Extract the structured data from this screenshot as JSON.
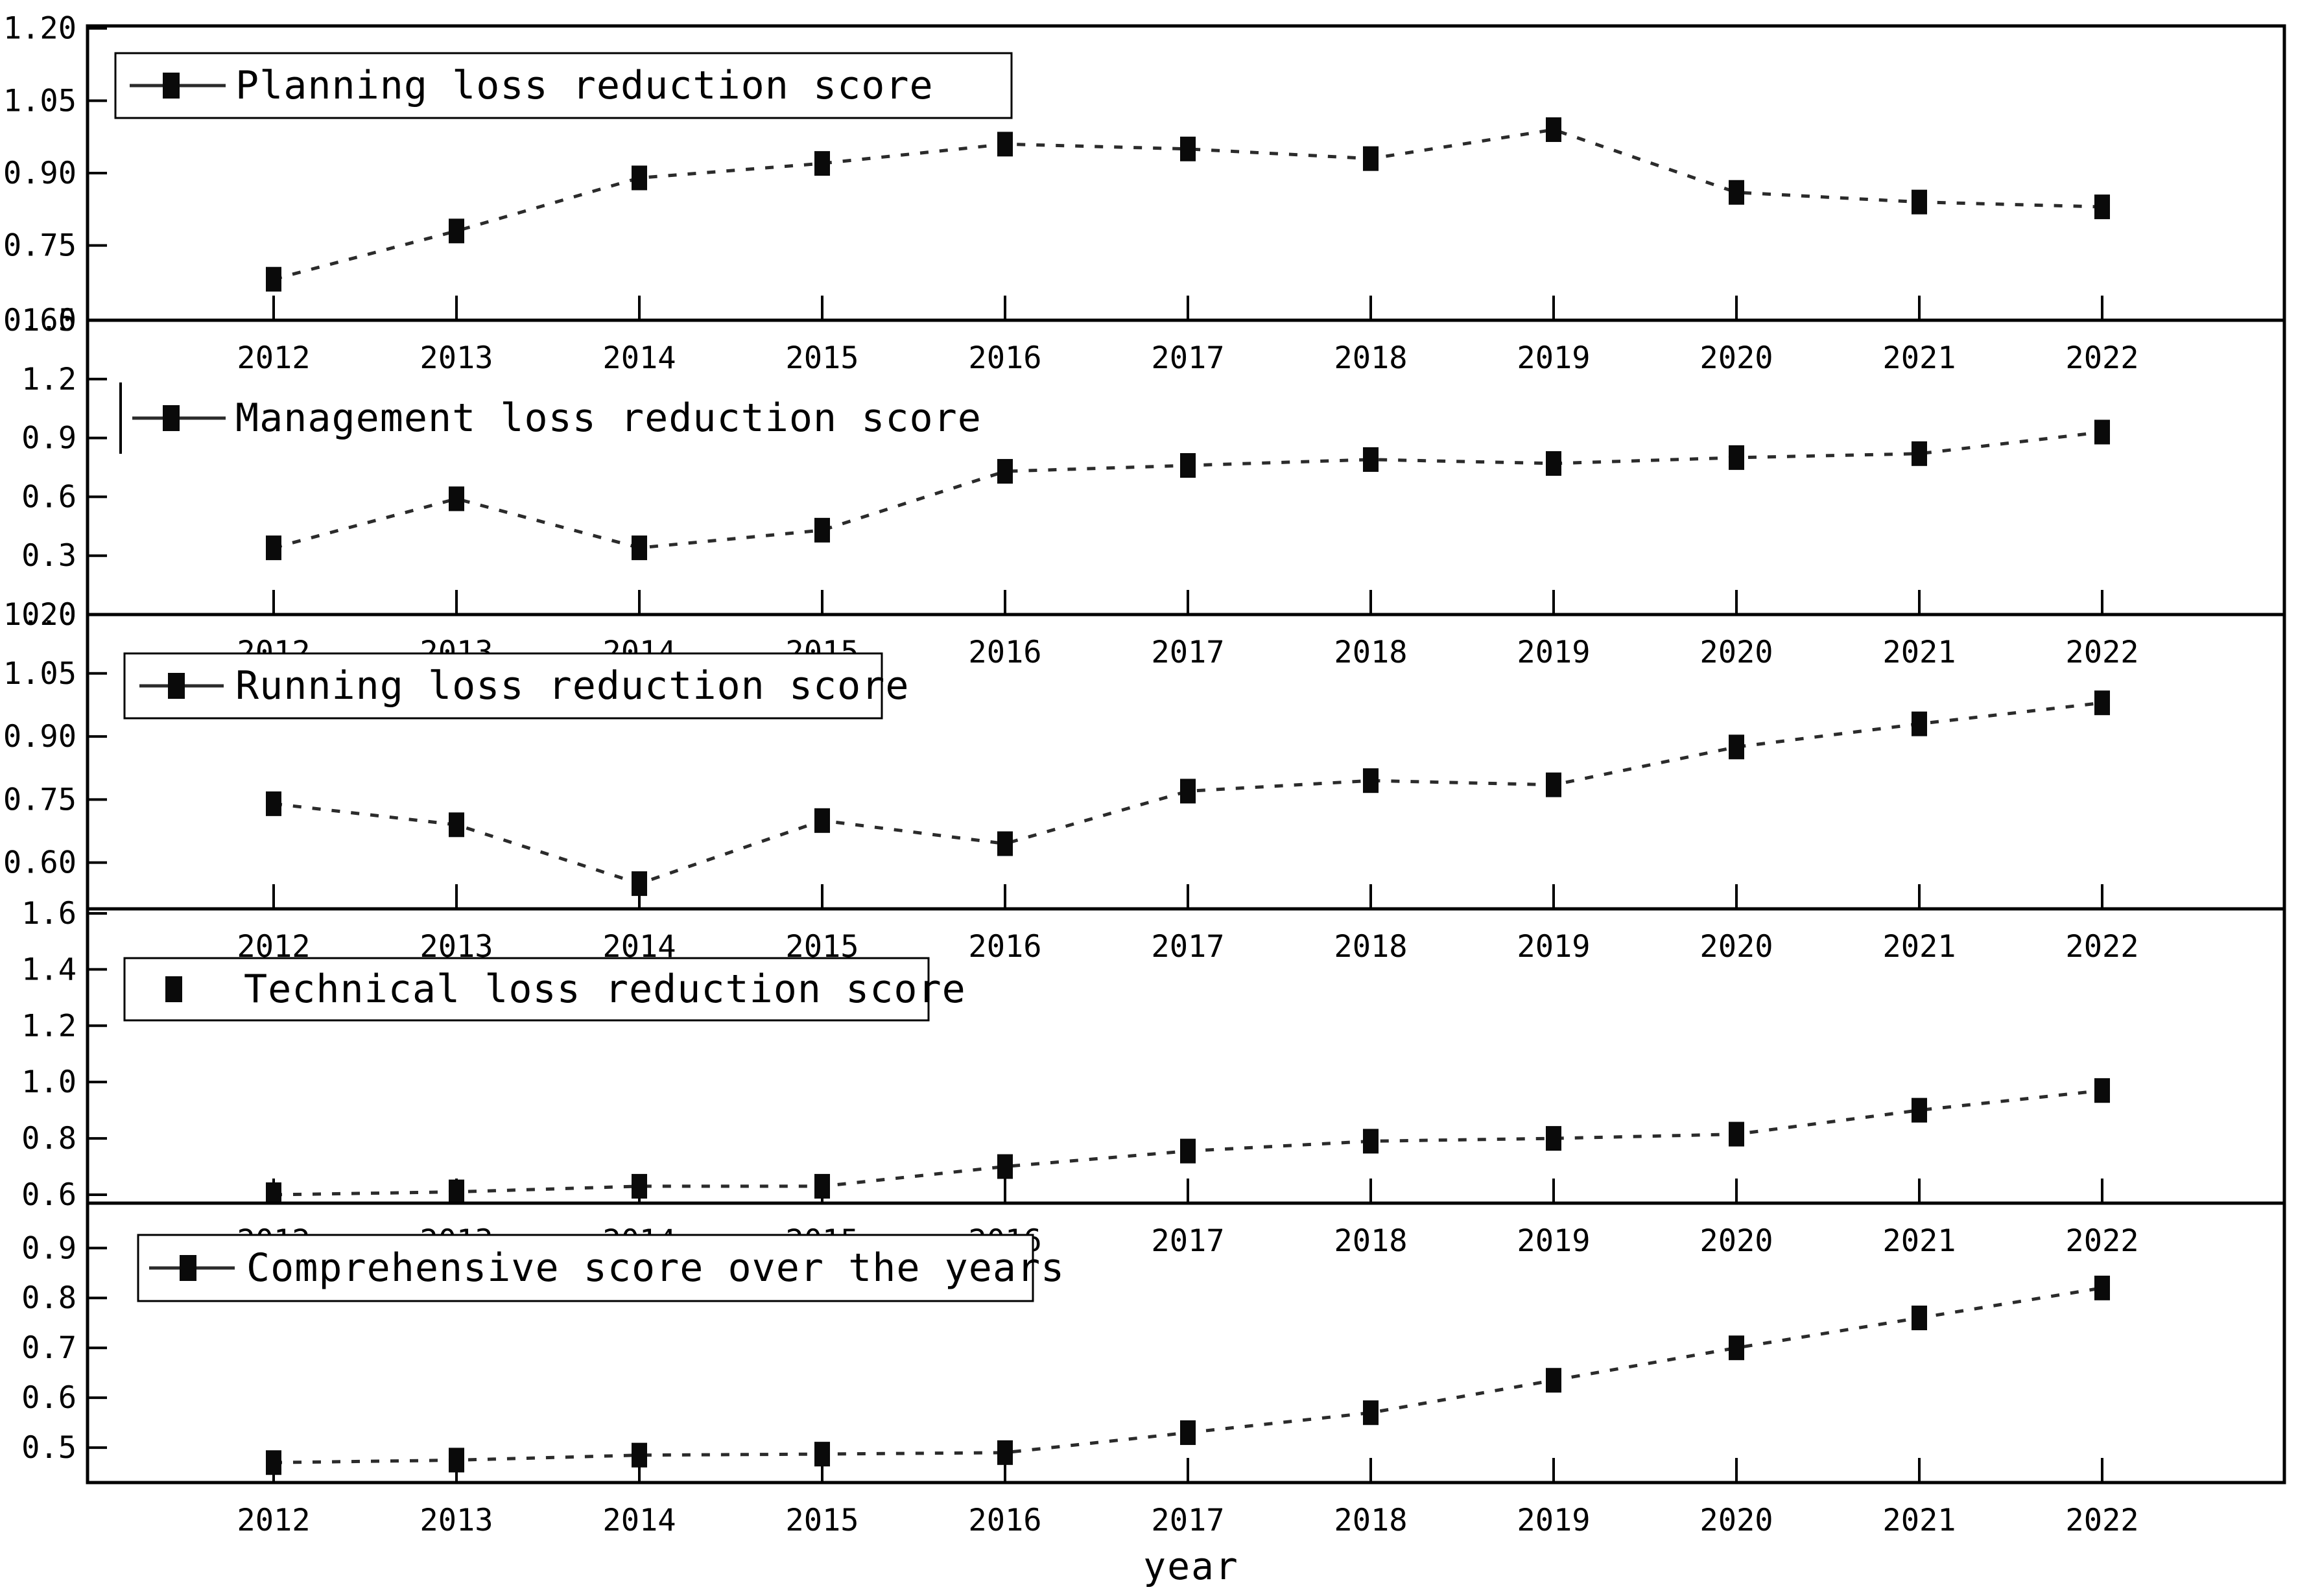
{
  "figure": {
    "background": "#ffffff",
    "axis_color": "#000000",
    "series_color": "#0a0a0a",
    "line_color": "#2b2b2b"
  },
  "chart_data": {
    "type": "line",
    "xlabel": "year",
    "x": [
      2012,
      2013,
      2014,
      2015,
      2016,
      2017,
      2018,
      2019,
      2020,
      2021,
      2022
    ],
    "x_tick_labels": [
      "2012",
      "2013",
      "2014",
      "2015",
      "2016",
      "2017",
      "2018",
      "2019",
      "2020",
      "2021",
      "2022"
    ],
    "legend_position": "upper left",
    "grid": false,
    "marker": "black-square",
    "line_style": "dashed",
    "panels": [
      {
        "name": "planning",
        "legend": {
          "label": "Planning loss reduction score",
          "sample": "line-square",
          "boxed": true
        },
        "y_axis": {
          "max": 1.205,
          "min": 0.595,
          "tick_values": [
            1.2,
            1.05,
            0.9,
            0.75
          ],
          "tick_labels": [
            "1.20",
            "1.05",
            "0.90",
            "0.75"
          ]
        },
        "values": [
          0.68,
          0.78,
          0.89,
          0.92,
          0.96,
          0.95,
          0.93,
          0.99,
          0.86,
          0.84,
          0.83
        ]
      },
      {
        "name": "management",
        "legend": {
          "label": "Management loss reduction score",
          "sample": "line-square",
          "boxed": false
        },
        "y_axis": {
          "max": 1.5,
          "min": 0.0,
          "tick_values": [
            1.2,
            0.9,
            0.6,
            0.3
          ],
          "tick_labels": [
            "1.2",
            "0.9",
            "0.6",
            "0.3"
          ]
        },
        "values": [
          0.34,
          0.59,
          0.34,
          0.43,
          0.73,
          0.76,
          0.79,
          0.77,
          0.8,
          0.82,
          0.93
        ]
      },
      {
        "name": "running",
        "legend": {
          "label": "Running loss reduction score",
          "sample": "line-square",
          "boxed": true
        },
        "y_axis": {
          "max": 1.19,
          "min": 0.49,
          "tick_values": [
            1.05,
            0.9,
            0.75,
            0.6
          ],
          "tick_labels": [
            "1.05",
            "0.90",
            "0.75",
            "0.60"
          ]
        },
        "values": [
          0.74,
          0.69,
          0.55,
          0.7,
          0.645,
          0.77,
          0.795,
          0.785,
          0.875,
          0.93,
          0.98
        ]
      },
      {
        "name": "technical",
        "legend": {
          "label": "Technical loss reduction score",
          "sample": "square",
          "boxed": true
        },
        "y_axis": {
          "max": 1.615,
          "min": 0.57,
          "tick_values": [
            1.4,
            1.2,
            1.0,
            0.8
          ],
          "tick_labels": [
            "1.4",
            "1.2",
            "1.0",
            "0.8"
          ]
        },
        "values": [
          0.6,
          0.61,
          0.63,
          0.63,
          0.7,
          0.755,
          0.79,
          0.8,
          0.815,
          0.9,
          0.97
        ]
      },
      {
        "name": "comprehensive",
        "legend": {
          "label": "Comprehensive score over the years",
          "sample": "line-square",
          "boxed": true
        },
        "y_axis": {
          "max": 0.99,
          "min": 0.43,
          "tick_values": [
            0.9,
            0.8,
            0.7,
            0.6,
            0.5
          ],
          "tick_labels": [
            "0.9",
            "0.8",
            "0.7",
            "0.6",
            "0.5"
          ]
        },
        "values": [
          0.47,
          0.475,
          0.485,
          0.487,
          0.49,
          0.53,
          0.57,
          0.635,
          0.7,
          0.76,
          0.82
        ]
      }
    ],
    "boundary_tick_labels": [
      {
        "between": "planning/management",
        "texts": [
          "0.60",
          "1.5"
        ]
      },
      {
        "between": "management/running",
        "texts": [
          "1.20",
          "0.0"
        ]
      },
      {
        "between": "running/technical",
        "texts": [
          "1.6"
        ]
      },
      {
        "between": "technical/comprehensive",
        "texts": [
          "0.6"
        ]
      }
    ]
  }
}
